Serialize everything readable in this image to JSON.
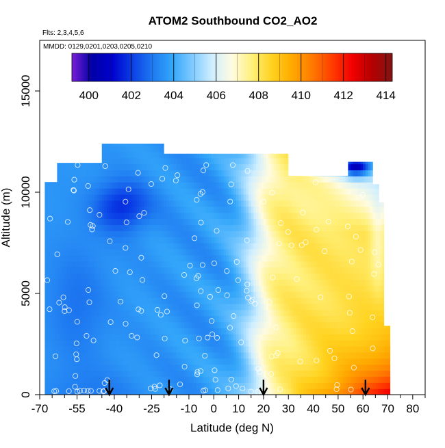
{
  "chart_data": {
    "type": "heatmap",
    "title": "ATOM2 Southbound CO2_AO2",
    "flights_note": "Flts: 2,3,4,5,6",
    "dates_note": "MMDD: 0129,0201,0203,0205,0210",
    "xlabel": "Latitude (deg N)",
    "ylabel": "Altitude (m)",
    "xlim": [
      -70,
      85
    ],
    "ylim": [
      0,
      17500
    ],
    "x_ticks": [
      -70,
      -55,
      -40,
      -25,
      -10,
      0,
      10,
      20,
      30,
      40,
      50,
      60,
      70,
      80
    ],
    "y_ticks": [
      0,
      5000,
      10000,
      15000
    ],
    "colorbar": {
      "min": 399.2,
      "max": 414.3,
      "ticks": [
        400,
        402,
        404,
        406,
        408,
        410,
        412,
        414
      ],
      "colors": [
        "#7a1fd6",
        "#0000a6",
        "#0000cc",
        "#0a3ee6",
        "#1e78f0",
        "#33a6fa",
        "#7dcaff",
        "#cfeeff",
        "#fffbe0",
        "#fff07a",
        "#ffd21e",
        "#ffaa00",
        "#ff7a00",
        "#ff3c00",
        "#f20000",
        "#b40000",
        "#821414"
      ]
    },
    "arrows_x": [
      -42,
      -18,
      20,
      61
    ],
    "grid": false,
    "legend": "colorbar inset at top"
  }
}
